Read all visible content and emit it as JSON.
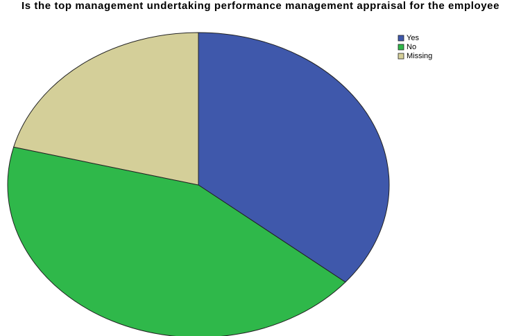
{
  "chart_data": {
    "type": "pie",
    "title": "Is the top management undertaking performance management appraisal for the employee",
    "categories": [
      "Yes",
      "No",
      "Missing"
    ],
    "values": [
      36,
      43,
      21
    ],
    "colors": [
      "#3f58ab",
      "#2fb84a",
      "#d4cf99"
    ],
    "legend": "top-right"
  }
}
